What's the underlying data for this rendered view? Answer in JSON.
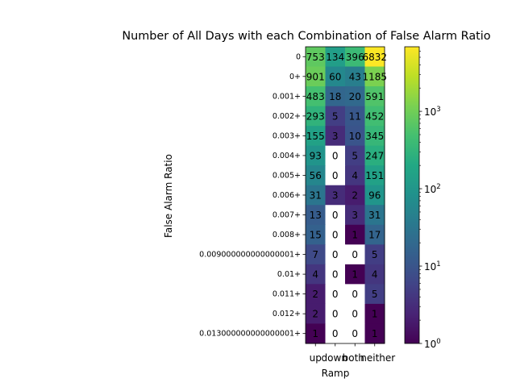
{
  "chart_data": {
    "type": "heatmap",
    "title": "Number of All Days with each Combination of False Alarm Ratio",
    "xlabel": "Ramp",
    "ylabel": "False Alarm Ratio",
    "x_categories": [
      "up",
      "down",
      "both",
      "neither"
    ],
    "y_categories": [
      "0",
      "0+",
      "0.001+",
      "0.002+",
      "0.003+",
      "0.004+",
      "0.005+",
      "0.006+",
      "0.007+",
      "0.008+",
      "0.009000000000000001+",
      "0.01+",
      "0.011+",
      "0.012+",
      "0.013000000000000001+"
    ],
    "values": [
      [
        753,
        134,
        396,
        6832
      ],
      [
        901,
        60,
        43,
        1185
      ],
      [
        483,
        18,
        20,
        591
      ],
      [
        293,
        5,
        11,
        452
      ],
      [
        155,
        3,
        10,
        345
      ],
      [
        93,
        0,
        5,
        247
      ],
      [
        56,
        0,
        4,
        151
      ],
      [
        31,
        3,
        2,
        96
      ],
      [
        13,
        0,
        3,
        31
      ],
      [
        15,
        0,
        1,
        17
      ],
      [
        7,
        0,
        0,
        5
      ],
      [
        4,
        0,
        1,
        4
      ],
      [
        2,
        0,
        0,
        5
      ],
      [
        2,
        0,
        0,
        1
      ],
      [
        1,
        0,
        0,
        1
      ]
    ],
    "colorbar": {
      "scale": "log",
      "colormap": "viridis",
      "range": [
        1,
        6832
      ],
      "ticks": [
        {
          "value": 1,
          "base": "10",
          "exp": "0"
        },
        {
          "value": 10,
          "base": "10",
          "exp": "1"
        },
        {
          "value": 100,
          "base": "10",
          "exp": "2"
        },
        {
          "value": 1000,
          "base": "10",
          "exp": "3"
        }
      ]
    },
    "zero_color": "#ffffff"
  }
}
